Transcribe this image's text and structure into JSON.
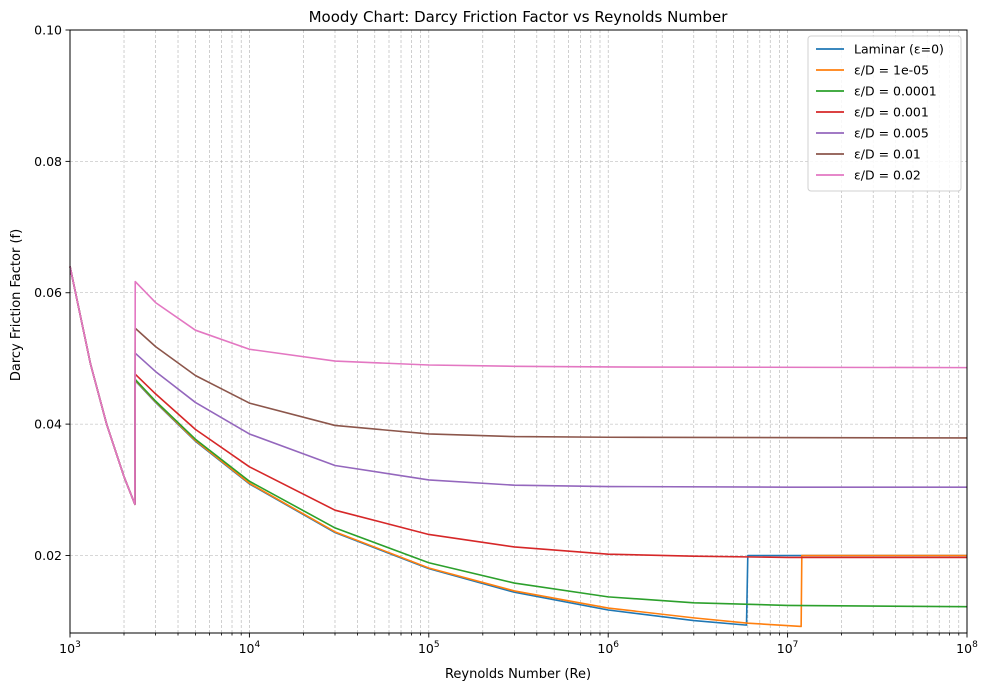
{
  "chart_data": {
    "type": "line",
    "title": "Moody Chart: Darcy Friction Factor vs Reynolds Number",
    "xlabel": "Reynolds Number (Re)",
    "ylabel": "Darcy Friction Factor (f)",
    "xscale": "log",
    "xlim": [
      1000,
      100000000
    ],
    "ylim": [
      0.0082,
      0.1
    ],
    "grid": true,
    "legend_position": "top-right",
    "x_ticks": [
      {
        "value": 1000,
        "base": "10",
        "exp": "3"
      },
      {
        "value": 10000,
        "base": "10",
        "exp": "4"
      },
      {
        "value": 100000,
        "base": "10",
        "exp": "5"
      },
      {
        "value": 1000000,
        "base": "10",
        "exp": "6"
      },
      {
        "value": 10000000,
        "base": "10",
        "exp": "7"
      },
      {
        "value": 100000000,
        "base": "10",
        "exp": "8"
      }
    ],
    "y_ticks": [
      {
        "value": 0.02,
        "label": "0.02"
      },
      {
        "value": 0.04,
        "label": "0.04"
      },
      {
        "value": 0.06,
        "label": "0.06"
      },
      {
        "value": 0.08,
        "label": "0.08"
      },
      {
        "value": 0.1,
        "label": "0.10"
      }
    ],
    "series": [
      {
        "name": "Laminar (ε=0)",
        "color": "#1f77b4",
        "points": [
          [
            1000,
            0.064
          ],
          [
            1300,
            0.0492
          ],
          [
            1600,
            0.04
          ],
          [
            2000,
            0.032
          ],
          [
            2300,
            0.0278
          ],
          [
            2310,
            0.0466
          ],
          [
            3000,
            0.0433
          ],
          [
            5000,
            0.0374
          ],
          [
            10000,
            0.0309
          ],
          [
            30000,
            0.0235
          ],
          [
            100000,
            0.018
          ],
          [
            300000,
            0.0144
          ],
          [
            1000000,
            0.0117
          ],
          [
            3000000,
            0.0101
          ],
          [
            5900000,
            0.0094
          ],
          [
            6000000,
            0.02
          ],
          [
            100000000,
            0.02
          ]
        ]
      },
      {
        "name": "ε/D = 1e-05",
        "color": "#ff7f0e",
        "points": [
          [
            1000,
            0.064
          ],
          [
            1300,
            0.0492
          ],
          [
            1600,
            0.04
          ],
          [
            2000,
            0.032
          ],
          [
            2300,
            0.0278
          ],
          [
            2310,
            0.0467
          ],
          [
            3000,
            0.0434
          ],
          [
            5000,
            0.0375
          ],
          [
            10000,
            0.031
          ],
          [
            30000,
            0.0236
          ],
          [
            100000,
            0.0181
          ],
          [
            300000,
            0.0146
          ],
          [
            1000000,
            0.012
          ],
          [
            3000000,
            0.0105
          ],
          [
            6000000,
            0.0097
          ],
          [
            11900000,
            0.0092
          ],
          [
            12000000,
            0.02
          ],
          [
            100000000,
            0.02
          ]
        ]
      },
      {
        "name": "ε/D = 0.0001",
        "color": "#2ca02c",
        "points": [
          [
            1000,
            0.064
          ],
          [
            1300,
            0.0492
          ],
          [
            1600,
            0.04
          ],
          [
            2000,
            0.032
          ],
          [
            2300,
            0.0278
          ],
          [
            2310,
            0.0468
          ],
          [
            3000,
            0.0435
          ],
          [
            5000,
            0.0377
          ],
          [
            10000,
            0.0313
          ],
          [
            30000,
            0.0242
          ],
          [
            100000,
            0.0189
          ],
          [
            300000,
            0.0158
          ],
          [
            1000000,
            0.0137
          ],
          [
            3000000,
            0.0128
          ],
          [
            10000000,
            0.0124
          ],
          [
            100000000,
            0.0122
          ]
        ]
      },
      {
        "name": "ε/D = 0.001",
        "color": "#d62728",
        "points": [
          [
            1000,
            0.064
          ],
          [
            1300,
            0.0492
          ],
          [
            1600,
            0.04
          ],
          [
            2000,
            0.032
          ],
          [
            2300,
            0.0278
          ],
          [
            2310,
            0.0476
          ],
          [
            3000,
            0.0446
          ],
          [
            5000,
            0.0392
          ],
          [
            10000,
            0.0335
          ],
          [
            30000,
            0.0269
          ],
          [
            100000,
            0.0232
          ],
          [
            300000,
            0.0213
          ],
          [
            1000000,
            0.0202
          ],
          [
            3000000,
            0.0199
          ],
          [
            10000000,
            0.0197
          ],
          [
            100000000,
            0.0197
          ]
        ]
      },
      {
        "name": "ε/D = 0.005",
        "color": "#9467bd",
        "points": [
          [
            1000,
            0.064
          ],
          [
            1300,
            0.0492
          ],
          [
            1600,
            0.04
          ],
          [
            2000,
            0.032
          ],
          [
            2300,
            0.0278
          ],
          [
            2310,
            0.0508
          ],
          [
            3000,
            0.048
          ],
          [
            5000,
            0.0433
          ],
          [
            10000,
            0.0385
          ],
          [
            30000,
            0.0337
          ],
          [
            100000,
            0.0315
          ],
          [
            300000,
            0.0307
          ],
          [
            1000000,
            0.0305
          ],
          [
            10000000,
            0.0304
          ],
          [
            100000000,
            0.0304
          ]
        ]
      },
      {
        "name": "ε/D = 0.01",
        "color": "#8c564b",
        "points": [
          [
            1000,
            0.064
          ],
          [
            1300,
            0.0492
          ],
          [
            1600,
            0.04
          ],
          [
            2000,
            0.032
          ],
          [
            2300,
            0.0278
          ],
          [
            2310,
            0.0546
          ],
          [
            3000,
            0.0518
          ],
          [
            5000,
            0.0474
          ],
          [
            10000,
            0.0432
          ],
          [
            30000,
            0.0398
          ],
          [
            100000,
            0.0385
          ],
          [
            300000,
            0.0381
          ],
          [
            1000000,
            0.038
          ],
          [
            100000000,
            0.0379
          ]
        ]
      },
      {
        "name": "ε/D = 0.02",
        "color": "#e377c2",
        "points": [
          [
            1000,
            0.064
          ],
          [
            1300,
            0.0492
          ],
          [
            1600,
            0.04
          ],
          [
            2000,
            0.032
          ],
          [
            2300,
            0.0278
          ],
          [
            2310,
            0.0617
          ],
          [
            3000,
            0.0585
          ],
          [
            5000,
            0.0543
          ],
          [
            10000,
            0.0514
          ],
          [
            30000,
            0.0496
          ],
          [
            100000,
            0.049
          ],
          [
            300000,
            0.0488
          ],
          [
            1000000,
            0.0487
          ],
          [
            100000000,
            0.0486
          ]
        ]
      }
    ]
  }
}
